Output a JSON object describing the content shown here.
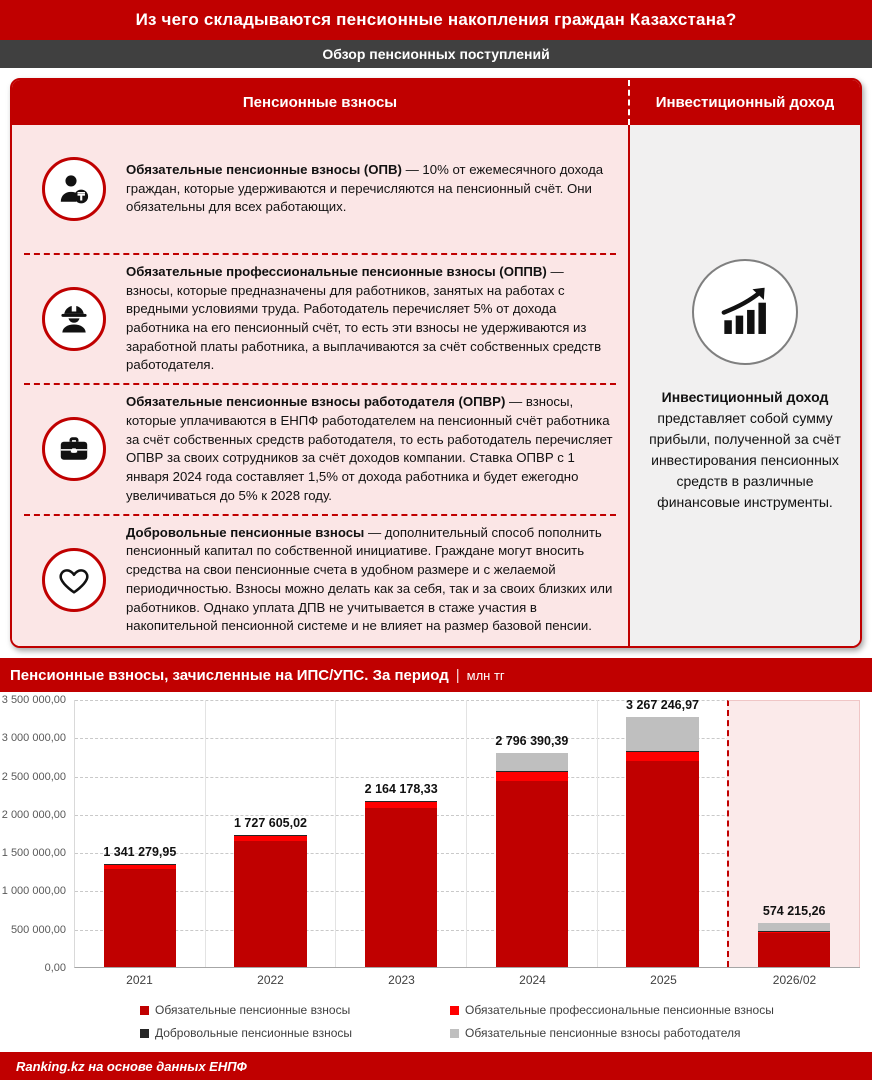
{
  "header": {
    "title": "Из чего складываются пенсионные накопления граждан Казахстана?",
    "subtitle": "Обзор пенсионных поступлений"
  },
  "card": {
    "left_title": "Пенсионные взносы",
    "right_title": "Инвестиционный доход",
    "items": [
      {
        "icon": "person-tenge-icon",
        "lead": "Обязательные пенсионные взносы (ОПВ)",
        "text": " — 10% от ежемесячного дохода граждан, которые удерживаются и перечисляются на пенсионный счёт. Они обязательны для всех работающих."
      },
      {
        "icon": "hard-hat-worker-icon",
        "lead": "Обязательные профессиональные пенсионные взносы (ОППВ)",
        "text": " — взносы, которые предназначены для работников, занятых на работах с вредными условиями труда. Работодатель перечисляет 5% от дохода работника на его пенсионный счёт, то есть эти взносы не удерживаются из заработной платы работника, а выплачиваются за счёт собственных средств работодателя."
      },
      {
        "icon": "briefcase-icon",
        "lead": "Обязательные пенсионные взносы работодателя (ОПВР)",
        "text": " — взносы, которые уплачиваются в ЕНПФ работодателем на пенсионный счёт работника за счёт собственных средств работодателя, то есть работодатель перечисляет ОПВР за своих сотрудников за счёт доходов компании. Ставка ОПВР с 1 января 2024 года составляет 1,5% от дохода работника и будет ежегодно увеличиваться до 5% к 2028 году."
      },
      {
        "icon": "heart-icon",
        "lead": "Добровольные пенсионные взносы",
        "text": " — дополнительный способ пополнить пенсионный капитал по собственной инициативе. Граждане могут вносить средства на свои пенсионные счета в удобном размере и с желаемой периодичностью. Взносы можно делать как за себя, так и за своих близких или работников. Однако уплата ДПВ не учитывается в стаже участия в накопительной пенсионной системе и не влияет на размер базовой пенсии."
      }
    ],
    "investment": {
      "icon": "investment-growth-icon",
      "lead": "Инвестиционный доход",
      "text": " представляет собой сумму прибыли, полученной за счёт инвестирования пенсионных средств в различные финансовые инструменты."
    }
  },
  "chart_header": {
    "title": "Пенсионные взносы, зачисленные на ИПС/УПС. За период",
    "separator": "|",
    "unit": "млн тг"
  },
  "chart_data": {
    "type": "bar",
    "stacked": true,
    "title": "Пенсионные взносы, зачисленные на ИПС/УПС. За период, млн тг",
    "categories": [
      "2021",
      "2022",
      "2023",
      "2024",
      "2025",
      "2026/02"
    ],
    "totals_formatted": [
      "1 341 279,95",
      "1 727 605,02",
      "2 164 178,33",
      "2 796 390,39",
      "3 267 246,97",
      "574 215,26"
    ],
    "totals": [
      1341279.95,
      1727605.02,
      2164178.33,
      2796390.39,
      3267246.97,
      574215.26
    ],
    "series": [
      {
        "name": "Обязательные пенсионные взносы",
        "color": "#C00000",
        "values": [
          1284000,
          1650000,
          2078000,
          2435000,
          2685000,
          450000
        ]
      },
      {
        "name": "Обязательные профессиональные пенсионные взносы",
        "color": "#FF0000",
        "values": [
          50000,
          70000,
          76000,
          115000,
          125000,
          16000
        ]
      },
      {
        "name": "Добровольные пенсионные взносы",
        "color": "#262626",
        "values": [
          7279.95,
          7605.02,
          10178.33,
          6390.39,
          7246.97,
          2215.26
        ]
      },
      {
        "name": "Обязательные пенсионные взносы работодателя",
        "color": "#BFBFBF",
        "values": [
          0,
          0,
          0,
          240000,
          450000,
          106000
        ]
      }
    ],
    "ylim": [
      0,
      3500000
    ],
    "ytick_step": 500000,
    "yticks_formatted": [
      "0,00",
      "500 000,00",
      "1 000 000,00",
      "1 500 000,00",
      "2 000 000,00",
      "2 500 000,00",
      "3 000 000,00",
      "3 500 000,00"
    ],
    "gridlines": "dashed",
    "projection_category": "2026/02",
    "legend_position": "bottom"
  },
  "footer": {
    "source": "Ranking.kz на основе данных ЕНПФ"
  },
  "colors": {
    "dark_red": "#C00000",
    "bright_red": "#FF0000",
    "light_gray": "#BFBFBF",
    "near_black": "#262626",
    "header_gray": "#404040",
    "pink_bg": "#FBE6E6"
  }
}
